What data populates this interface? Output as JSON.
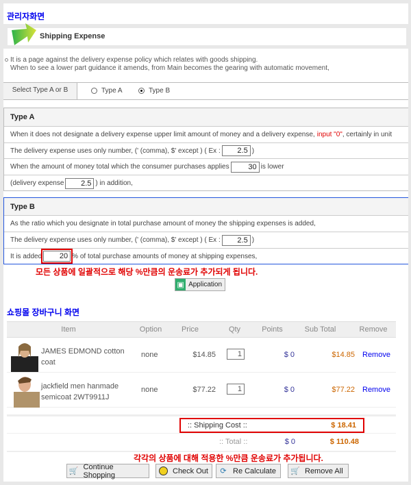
{
  "admin_title": "관리자화면",
  "section_title": "Shipping Expense",
  "notes": [
    "It is a page against the delivery expense policy which relates with goods shipping.",
    "When to see a lower part guidance it amends, from Main becomes the gearing with automatic movement,"
  ],
  "select_type": {
    "label": "Select Type A or B",
    "options": [
      "Type A",
      "Type B"
    ],
    "selected": "Type B"
  },
  "type_a": {
    "title": "Type A",
    "line1_pre": "When it does not designate a delivery expense upper limit amount of money and a delivery expense, ",
    "line1_red": "input \"0\"",
    "line1_post": ", certainly in unit",
    "line2_pre": "The delivery expense uses only number, (' (comma), $' except ) ( Ex :",
    "line2_value": "2.5",
    "line2_post": ")",
    "line3_pre": "When the amount of money total which the consumer purchases applies",
    "line3_value": "30",
    "line3_post": "is lower",
    "line4_pre": "(delivery expense",
    "line4_value": "2.5",
    "line4_post": ") in addition,"
  },
  "type_b": {
    "title": "Type B",
    "line1": "As the ratio which you designate in total purchase amount of money the shipping expenses is added,",
    "line2_pre": "The delivery expense uses only number, (' (comma), $' except ) ( Ex :",
    "line2_value": "2.5",
    "line2_post": ")",
    "line3_pre": "It is added",
    "line3_value": "20",
    "line3_post": "% of total purchase amounts of money at shipping expenses,"
  },
  "annotation_1": "모든 상품에 일괄적으로 해당 %만큼의 운송료가 추가되게 됩니다.",
  "apply_label": "Application",
  "cart_title": "쇼핑몰 장바구니 화면",
  "cart": {
    "headers": [
      "Item",
      "Option",
      "Price",
      "Qty",
      "Points",
      "Sub Total",
      "Remove"
    ],
    "rows": [
      {
        "name": "JAMES EDMOND cotton coat",
        "option": "none",
        "price": "$14.85",
        "qty": "1",
        "points": "$  0",
        "subtotal": "$14.85",
        "remove": "Remove"
      },
      {
        "name": "jackfield men hanmade semicoat 2WT9911J",
        "option": "none",
        "price": "$77.22",
        "qty": "1",
        "points": "$  0",
        "subtotal": "$77.22",
        "remove": "Remove"
      }
    ],
    "shipping_label": ":: Shipping Cost ::",
    "shipping_value": "$ 18.41",
    "total_label": ":: Total ::",
    "total_points": "$  0",
    "total_value": "$ 110.48"
  },
  "annotation_2": "각각의 상품에 대해 적용한 %만큼 운송료가 추가됩니다.",
  "buttons": {
    "continue": "Continue Shopping",
    "checkout": "Check Out",
    "recalc": "Re Calculate",
    "remove_all": "Remove All"
  },
  "colors": {
    "title_blue": "#0000ee",
    "annotation_red": "#e00000",
    "subtotal_orange": "#cc6600",
    "link_blue": "#0000ee",
    "type_b_border": "#2255dd"
  }
}
